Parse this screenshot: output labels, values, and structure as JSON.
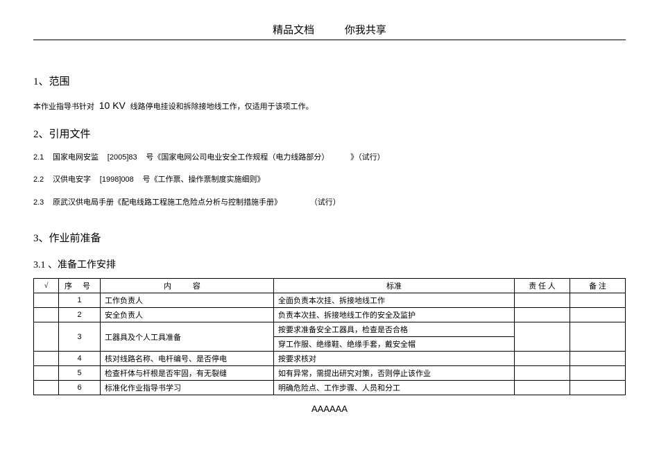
{
  "header": {
    "left": "精品文档",
    "right": "你我共享"
  },
  "sections": {
    "s1": {
      "title": "1、范围",
      "body_pre": "本作业指导书针对",
      "kv": "10 KV",
      "body_post": "线路停电挂设和拆除接地线工作，仅适用于该项工作。"
    },
    "s2": {
      "title": "2、引用文件",
      "refs": [
        {
          "idx": "2.1",
          "a": "国家电网安监",
          "b": "[2005]83",
          "c": "号《国家电网公司电业安全工作规程（电力线路部分）",
          "d": "》（试行）"
        },
        {
          "idx": "2.2",
          "a": "汉供电安字",
          "b": "[1998]008",
          "c": "号《工作票、操作票制度实施细则》",
          "d": ""
        },
        {
          "idx": "2.3",
          "a": "原武汉供电局手册《配电线路工程施工危险点分析与控制措施手册》",
          "b": "",
          "c": "",
          "d": "（试行）"
        }
      ]
    },
    "s3": {
      "title": "3、作业前准备",
      "sub": "3.1 、准备工作安排"
    }
  },
  "table": {
    "headers": {
      "check": "√",
      "seq": "序   号",
      "content": "内                           容",
      "std": "标准",
      "owner": "责   任   人",
      "note": "备     注"
    },
    "rows": [
      {
        "seq": "1",
        "content": "工作负责人",
        "std": "全面负责本次挂、拆接地线工作"
      },
      {
        "seq": "2",
        "content": "安全负责人",
        "std": "负责本次挂、拆接地线工作的安全及监护"
      },
      {
        "seq": "3",
        "content": "工器具及个人工具准备",
        "std": "按要求准备安全工器具，检查是否合格\n穿工作服、绝缘鞋、绝缘手套，戴安全帽"
      },
      {
        "seq": "4",
        "content": "核对线路名称、电杆编号、是否停电",
        "std": "按要求核对"
      },
      {
        "seq": "5",
        "content": "检查杆体与杆根是否牢固，有无裂缝",
        "std": "如有异常，需提出研究对策，否则停止该作业"
      },
      {
        "seq": "6",
        "content": "标准化作业指导书学习",
        "std": "明确危险点、工作步骤、人员和分工"
      }
    ]
  },
  "footer": "AAAAAA"
}
